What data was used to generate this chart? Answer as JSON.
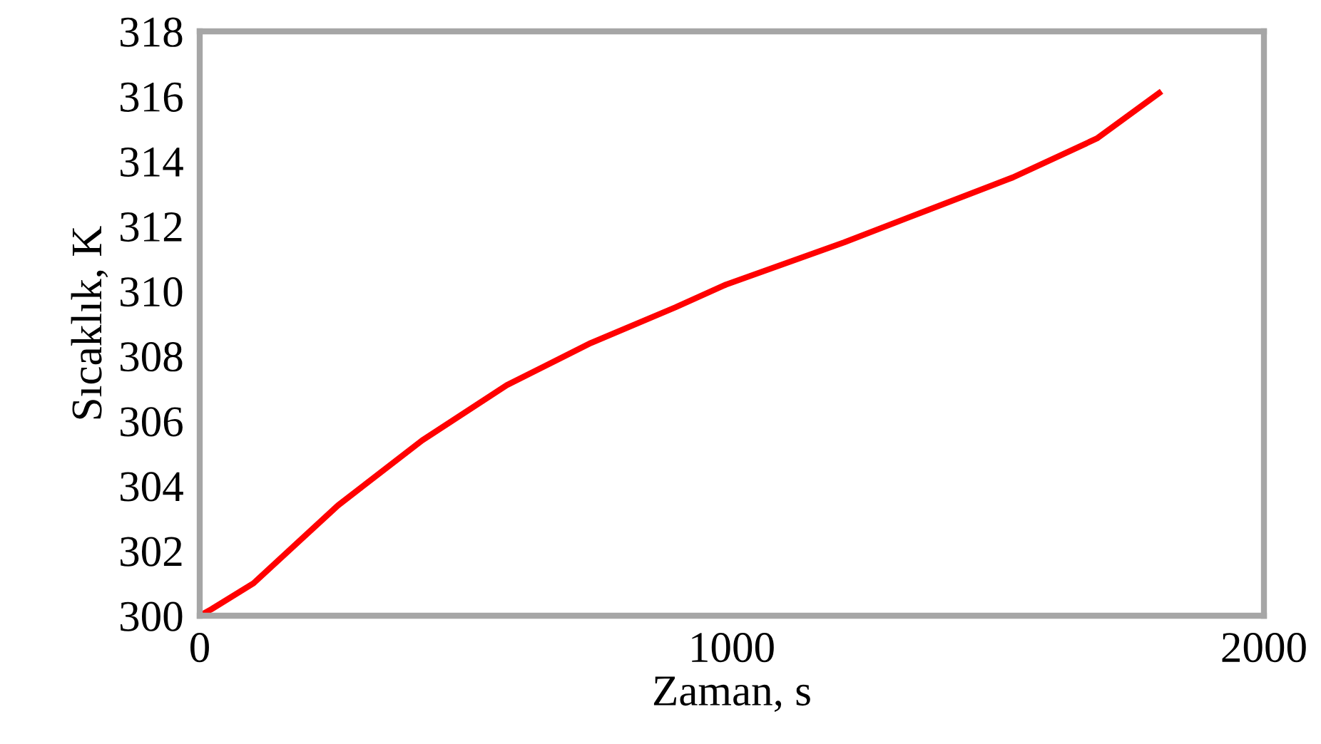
{
  "chart_data": {
    "type": "line",
    "xlabel": "Zaman, s",
    "ylabel": "Sıcaklık, K",
    "x": [
      0,
      22,
      101,
      260,
      418,
      577,
      735,
      894,
      989,
      1211,
      1369,
      1528,
      1686,
      1803
    ],
    "series": [
      {
        "color": "#ff0000",
        "values": [
          300,
          300.2,
          301.0,
          303.4,
          305.4,
          307.1,
          308.4,
          309.5,
          310.2,
          311.5,
          312.5,
          313.5,
          314.7,
          316.1
        ]
      }
    ],
    "xlim": [
      0,
      2000
    ],
    "xticks": [
      0,
      1000,
      2000
    ],
    "ylim": [
      300,
      318
    ],
    "yticks": [
      300,
      302,
      304,
      306,
      308,
      310,
      312,
      314,
      316,
      318
    ],
    "grid": false,
    "legend": false,
    "marker": "none",
    "line_style": "solid"
  }
}
